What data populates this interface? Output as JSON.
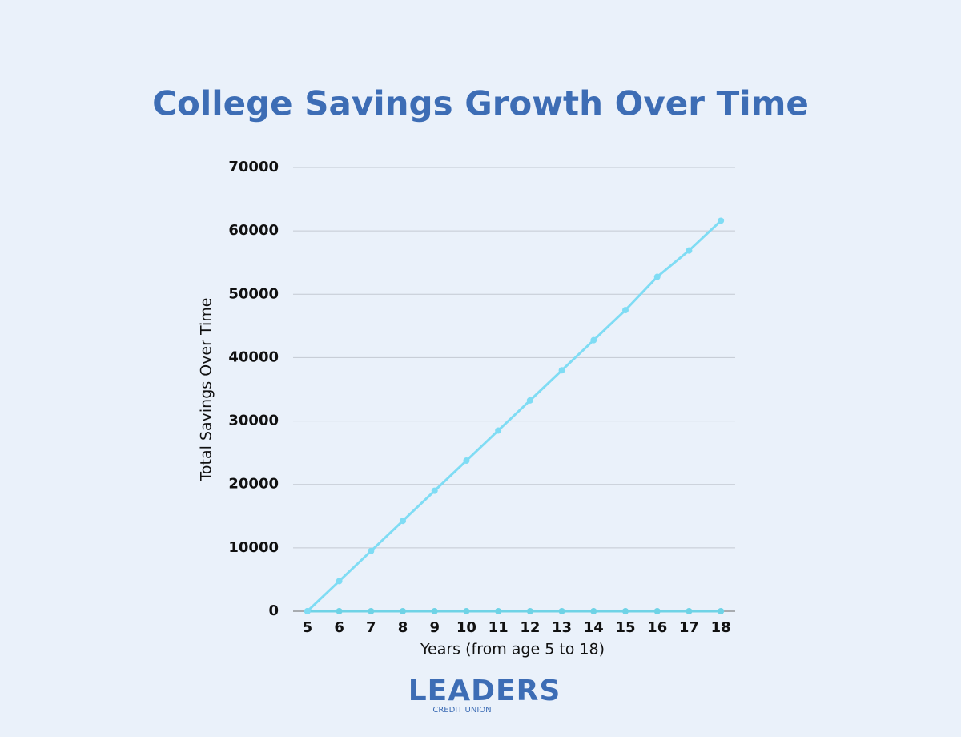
{
  "chart_data": {
    "type": "line",
    "title": "College Savings Growth Over Time",
    "x_label": "Years (from age 5 to 18)",
    "y_label": "Total Savings Over Time",
    "x": [
      5,
      6,
      7,
      8,
      9,
      10,
      11,
      12,
      13,
      14,
      15,
      16,
      17,
      18
    ],
    "series": [
      {
        "color": "#7fdcf4",
        "values": [
          0,
          4750,
          9500,
          14250,
          19000,
          23750,
          28500,
          33250,
          38000,
          42750,
          47500,
          52750,
          56900,
          61600
        ]
      },
      {
        "color": "#6fd3e6",
        "values": [
          0,
          0,
          0,
          0,
          0,
          0,
          0,
          0,
          0,
          0,
          0,
          0,
          0,
          0
        ]
      }
    ],
    "xlim": [
      4.55,
      18.45
    ],
    "xticks": [
      5,
      6,
      7,
      8,
      9,
      10,
      11,
      12,
      13,
      14,
      15,
      16,
      17,
      18
    ],
    "ylim": [
      0,
      70000
    ],
    "yticks": [
      0,
      10000,
      20000,
      30000,
      40000,
      50000,
      60000,
      70000
    ],
    "grid": true
  },
  "logo": {
    "name": "LEADERS",
    "tagline": "CREDIT UNION"
  }
}
